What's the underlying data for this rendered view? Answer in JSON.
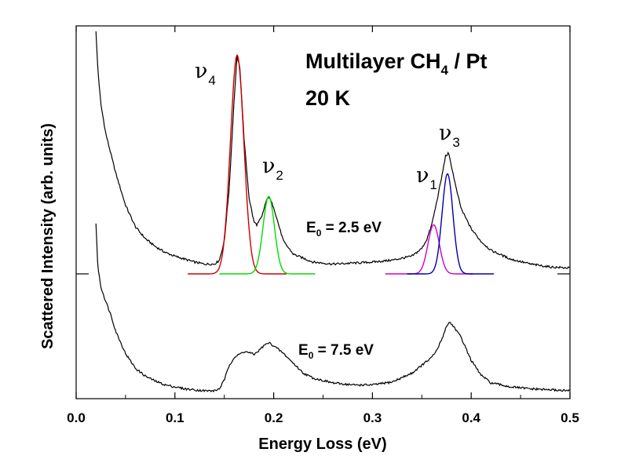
{
  "chart_data": {
    "type": "line",
    "title_line1_main": "Multilayer CH",
    "title_line1_sub": "4",
    "title_line1_rest": " / Pt",
    "title_line2": "20 K",
    "xlabel": "Energy Loss (eV)",
    "ylabel": "Scattered Intensity (arb. units)",
    "xlim": [
      0.0,
      0.5
    ],
    "xticks": [
      "0.0",
      "0.1",
      "0.2",
      "0.3",
      "0.4",
      "0.5"
    ],
    "y_ticks_shown": false,
    "grid": false,
    "curves": [
      {
        "label_main": "E",
        "label_sub": "0",
        "label_rest": " = 2.5 eV",
        "color": "#000000",
        "baseline": 0.52,
        "x": [
          0.02,
          0.022,
          0.025,
          0.03,
          0.035,
          0.04,
          0.05,
          0.06,
          0.07,
          0.08,
          0.09,
          0.1,
          0.11,
          0.12,
          0.13,
          0.14,
          0.145,
          0.15,
          0.155,
          0.16,
          0.163,
          0.166,
          0.17,
          0.175,
          0.18,
          0.183,
          0.188,
          0.192,
          0.195,
          0.2,
          0.205,
          0.21,
          0.22,
          0.24,
          0.26,
          0.28,
          0.3,
          0.32,
          0.33,
          0.34,
          0.35,
          0.355,
          0.36,
          0.365,
          0.37,
          0.374,
          0.377,
          0.38,
          0.385,
          0.39,
          0.4,
          0.41,
          0.42,
          0.44,
          0.46,
          0.48,
          0.5
        ],
        "y": [
          3.0,
          2.6,
          2.25,
          1.95,
          1.75,
          1.55,
          1.22,
          1.0,
          0.88,
          0.8,
          0.74,
          0.7,
          0.67,
          0.64,
          0.62,
          0.62,
          0.66,
          0.85,
          1.4,
          2.3,
          2.75,
          2.6,
          1.9,
          1.3,
          1.05,
          1.02,
          1.1,
          1.25,
          1.31,
          1.2,
          1.02,
          0.85,
          0.72,
          0.64,
          0.62,
          0.63,
          0.64,
          0.66,
          0.68,
          0.7,
          0.78,
          0.87,
          1.02,
          1.25,
          1.5,
          1.72,
          1.75,
          1.62,
          1.38,
          1.18,
          0.98,
          0.85,
          0.76,
          0.67,
          0.62,
          0.59,
          0.58
        ]
      },
      {
        "label_main": "E",
        "label_sub": "0",
        "label_rest": " = 7.5 eV",
        "color": "#000000",
        "baseline": 0.0,
        "x": [
          0.02,
          0.022,
          0.025,
          0.03,
          0.035,
          0.04,
          0.05,
          0.06,
          0.07,
          0.08,
          0.09,
          0.1,
          0.11,
          0.12,
          0.13,
          0.14,
          0.145,
          0.15,
          0.155,
          0.16,
          0.165,
          0.17,
          0.175,
          0.18,
          0.185,
          0.19,
          0.195,
          0.2,
          0.21,
          0.22,
          0.23,
          0.24,
          0.26,
          0.28,
          0.3,
          0.32,
          0.34,
          0.35,
          0.36,
          0.365,
          0.37,
          0.375,
          0.378,
          0.382,
          0.39,
          0.4,
          0.41,
          0.42,
          0.44,
          0.46,
          0.48,
          0.5
        ],
        "y": [
          1.75,
          1.3,
          1.1,
          0.95,
          0.82,
          0.65,
          0.42,
          0.27,
          0.19,
          0.14,
          0.1,
          0.08,
          0.06,
          0.05,
          0.04,
          0.04,
          0.06,
          0.15,
          0.3,
          0.38,
          0.41,
          0.44,
          0.43,
          0.41,
          0.45,
          0.5,
          0.53,
          0.5,
          0.42,
          0.32,
          0.22,
          0.17,
          0.12,
          0.1,
          0.1,
          0.13,
          0.22,
          0.3,
          0.38,
          0.45,
          0.56,
          0.7,
          0.74,
          0.7,
          0.58,
          0.35,
          0.2,
          0.12,
          0.08,
          0.06,
          0.05,
          0.04
        ]
      }
    ],
    "fit_peaks": [
      {
        "label": "ν",
        "sub": "4",
        "color": "#cc0000",
        "center": 0.163,
        "amplitude": 2.23,
        "sigma": 0.0068,
        "x_start": 0.113,
        "x_end": 0.213
      },
      {
        "label": "ν",
        "sub": "2",
        "color": "#00dd00",
        "center": 0.195,
        "amplitude": 0.79,
        "sigma": 0.0058,
        "x_start": 0.145,
        "x_end": 0.242
      },
      {
        "label": "ν",
        "sub": "1",
        "color": "#cc00cc",
        "center": 0.362,
        "amplitude": 0.5,
        "sigma": 0.0058,
        "x_start": 0.313,
        "x_end": 0.402
      },
      {
        "label": "ν",
        "sub": "3",
        "color": "#0000aa",
        "center": 0.376,
        "amplitude": 1.02,
        "sigma": 0.0055,
        "x_start": 0.335,
        "x_end": 0.423
      }
    ]
  }
}
